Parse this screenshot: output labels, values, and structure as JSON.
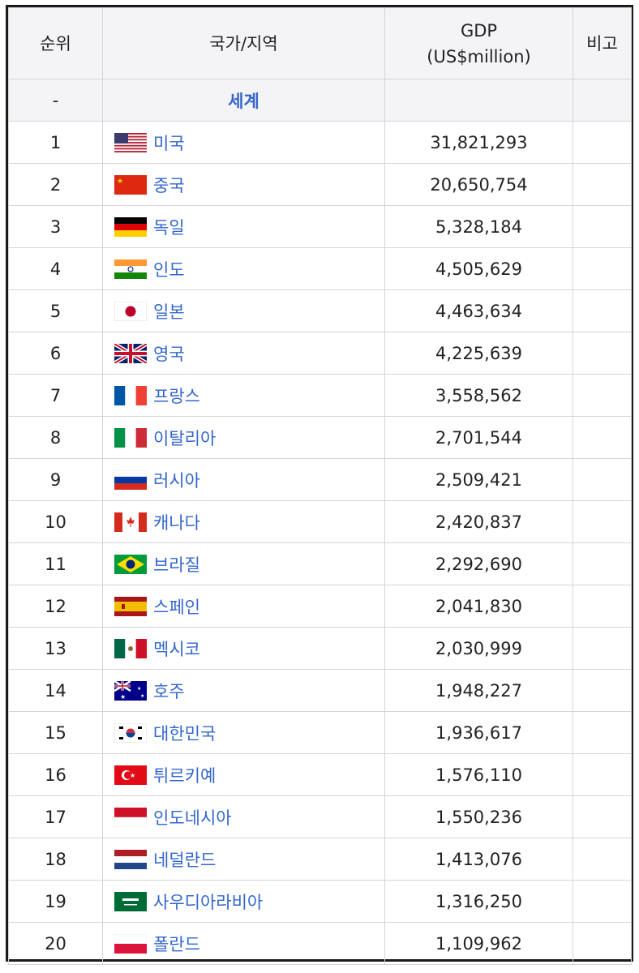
{
  "table": {
    "headers": {
      "rank": "순위",
      "country": "국가/지역",
      "gdp_line1": "GDP",
      "gdp_line2": "(US$million)",
      "note": "비고"
    },
    "world_row": {
      "rank": "-",
      "name": "세계",
      "gdp": "",
      "note": ""
    },
    "rows": [
      {
        "rank": "1",
        "name": "미국",
        "gdp": "31,821,293",
        "flag": "usa-flag-icon"
      },
      {
        "rank": "2",
        "name": "중국",
        "gdp": "20,650,754",
        "flag": "china-flag-icon"
      },
      {
        "rank": "3",
        "name": "독일",
        "gdp": "5,328,184",
        "flag": "germany-flag-icon"
      },
      {
        "rank": "4",
        "name": "인도",
        "gdp": "4,505,629",
        "flag": "india-flag-icon"
      },
      {
        "rank": "5",
        "name": "일본",
        "gdp": "4,463,634",
        "flag": "japan-flag-icon"
      },
      {
        "rank": "6",
        "name": "영국",
        "gdp": "4,225,639",
        "flag": "uk-flag-icon"
      },
      {
        "rank": "7",
        "name": "프랑스",
        "gdp": "3,558,562",
        "flag": "france-flag-icon"
      },
      {
        "rank": "8",
        "name": "이탈리아",
        "gdp": "2,701,544",
        "flag": "italy-flag-icon"
      },
      {
        "rank": "9",
        "name": "러시아",
        "gdp": "2,509,421",
        "flag": "russia-flag-icon"
      },
      {
        "rank": "10",
        "name": "캐나다",
        "gdp": "2,420,837",
        "flag": "canada-flag-icon"
      },
      {
        "rank": "11",
        "name": "브라질",
        "gdp": "2,292,690",
        "flag": "brazil-flag-icon"
      },
      {
        "rank": "12",
        "name": "스페인",
        "gdp": "2,041,830",
        "flag": "spain-flag-icon"
      },
      {
        "rank": "13",
        "name": "멕시코",
        "gdp": "2,030,999",
        "flag": "mexico-flag-icon"
      },
      {
        "rank": "14",
        "name": "호주",
        "gdp": "1,948,227",
        "flag": "australia-flag-icon"
      },
      {
        "rank": "15",
        "name": "대한민국",
        "gdp": "1,936,617",
        "flag": "korea-flag-icon"
      },
      {
        "rank": "16",
        "name": "튀르키예",
        "gdp": "1,576,110",
        "flag": "turkey-flag-icon"
      },
      {
        "rank": "17",
        "name": "인도네시아",
        "gdp": "1,550,236",
        "flag": "indonesia-flag-icon"
      },
      {
        "rank": "18",
        "name": "네덜란드",
        "gdp": "1,413,076",
        "flag": "netherlands-flag-icon"
      },
      {
        "rank": "19",
        "name": "사우디아라비아",
        "gdp": "1,316,250",
        "flag": "saudi-arabia-flag-icon"
      },
      {
        "rank": "20",
        "name": "폴란드",
        "gdp": "1,109,962",
        "flag": "poland-flag-icon"
      }
    ]
  },
  "colors": {
    "link": "#3366cc",
    "header_bg": "#f4f4f6",
    "border": "#d6d6d6"
  }
}
